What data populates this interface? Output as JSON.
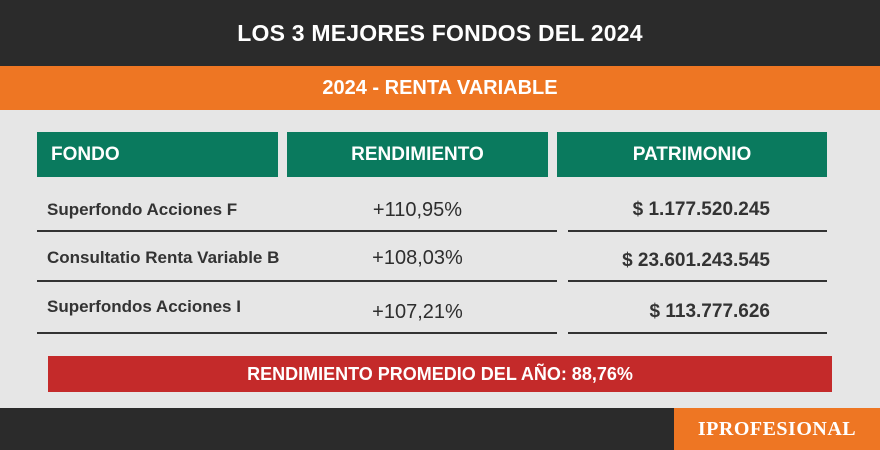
{
  "header": {
    "title": "LOS 3 MEJORES FONDOS DEL 2024",
    "subtitle": "2024 - RENTA VARIABLE"
  },
  "table": {
    "columns": [
      "FONDO",
      "RENDIMIENTO",
      "PATRIMONIO"
    ],
    "rows": [
      {
        "fondo": "Superfondo Acciones F",
        "rendimiento": "+110,95%",
        "patrimonio": "$ 1.177.520.245"
      },
      {
        "fondo": "Consultatio Renta Variable B",
        "rendimiento": "+108,03%",
        "patrimonio": "$ 23.601.243.545"
      },
      {
        "fondo": "Superfondos Acciones I",
        "rendimiento": "+107,21%",
        "patrimonio": "$ 113.777.626"
      }
    ]
  },
  "footer": {
    "average": "RENDIMIENTO PROMEDIO DEL AÑO: 88,76%",
    "logo": "IPROFESIONAL"
  },
  "colors": {
    "dark": "#2b2b2b",
    "orange": "#ee7623",
    "green": "#0a7a5e",
    "red": "#c42a2a"
  }
}
